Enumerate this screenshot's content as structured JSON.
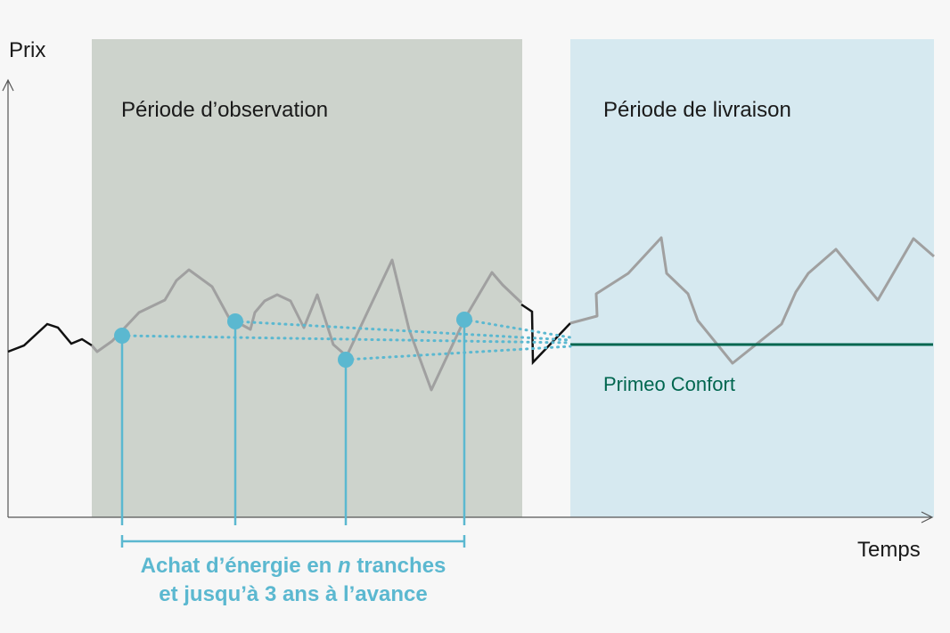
{
  "axes": {
    "y_label": "Prix",
    "x_label": "Temps"
  },
  "periods": {
    "observation": {
      "label": "Période d’observation",
      "color": "#cdd3cc"
    },
    "delivery": {
      "label": "Période de livraison",
      "color": "#d6e9f0"
    }
  },
  "fixed_price": {
    "label": "Primeo Confort",
    "color": "#00664f"
  },
  "purchase_note": {
    "line1_pre": "Achat d’énergie en ",
    "line1_n": "n",
    "line1_post": " tranches",
    "line2": "et jusqu’à 3 ans à l’avance"
  },
  "colors": {
    "accent": "#5bb8d0",
    "price_line": "#a0a0a0",
    "history_line": "#111111",
    "background": "#f7f7f7"
  },
  "purchase_tranches": 4
}
